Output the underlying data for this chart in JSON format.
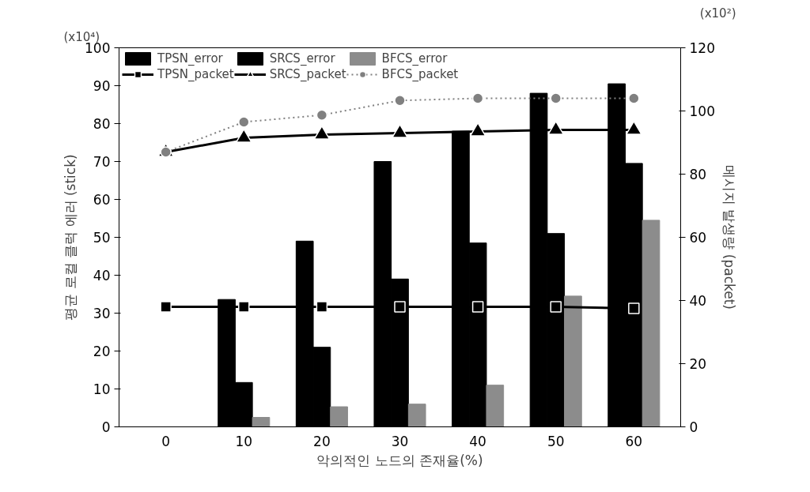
{
  "chart_data": {
    "type": "bar",
    "xlabel": "악의적인 노드의 존재율(%)",
    "ylabel": "평균 로컬 클럭 에러 (stick)",
    "y2label": "메시지 발생량 (packet)",
    "categories": [
      "0",
      "10",
      "20",
      "30",
      "40",
      "50",
      "60"
    ],
    "series": [
      {
        "name": "TPSN_error",
        "color": "#000000",
        "values": [
          0,
          33.6,
          49,
          70,
          78,
          88,
          90.5
        ]
      },
      {
        "name": "SRCS_error",
        "color": "#000000",
        "values": [
          0,
          11.7,
          21,
          39,
          48.5,
          51,
          69.5
        ]
      },
      {
        "name": "BFCS_error",
        "color": "#8c8c8c",
        "values": [
          0,
          2.5,
          5.3,
          6,
          11,
          34.5,
          54.5
        ]
      },
      {
        "name": "TPSN_packet",
        "type": "line",
        "axis": "y2",
        "color": "#000000",
        "marker": "square",
        "line_style": "solid",
        "values": [
          38,
          38,
          38,
          38,
          38,
          38,
          37.5
        ]
      },
      {
        "name": "SRCS_packet",
        "type": "line",
        "axis": "y2",
        "color": "#000000",
        "marker": "triangle",
        "line_style": "solid",
        "values": [
          87,
          91.5,
          92.5,
          93,
          93.5,
          94,
          94
        ]
      },
      {
        "name": "BFCS_packet",
        "type": "line",
        "axis": "y2",
        "color": "#808080",
        "marker": "circle",
        "line_style": "dotted",
        "values": [
          87,
          96.5,
          98.7,
          103.3,
          104,
          104,
          104
        ]
      }
    ],
    "ylim": [
      0,
      100
    ],
    "yticks": [
      0,
      10,
      20,
      30,
      40,
      50,
      60,
      70,
      80,
      90,
      100
    ],
    "y2lim": [
      0,
      120
    ],
    "y2ticks": [
      0,
      20,
      40,
      60,
      80,
      100,
      120
    ],
    "annotations": [
      "(x10⁴)",
      "(x10²)"
    ],
    "legend": "top left",
    "grid": false
  }
}
